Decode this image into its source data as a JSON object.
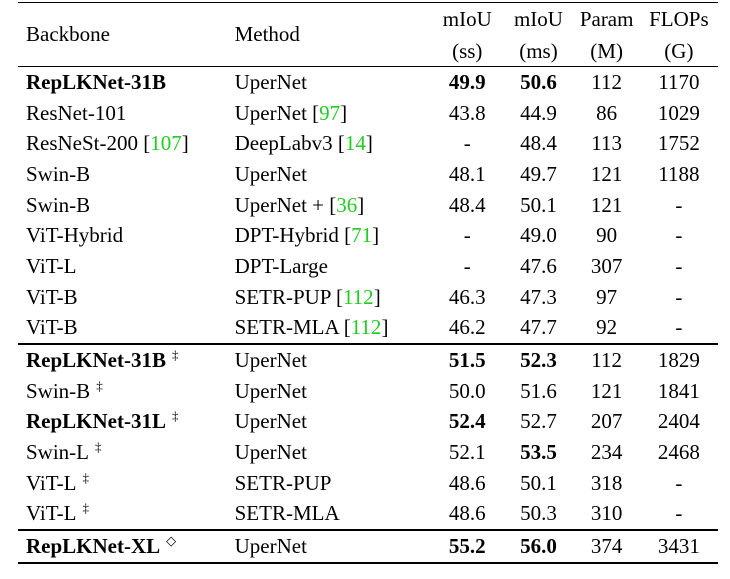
{
  "header": {
    "backbone": "Backbone",
    "method": "Method",
    "miou_ss_top": "mIoU",
    "miou_ss_bottom": "(ss)",
    "miou_ms_top": "mIoU",
    "miou_ms_bottom": "(ms)",
    "param_top": "Param",
    "param_bottom": "(M)",
    "flops_top": "FLOPs",
    "flops_bottom": "(G)"
  },
  "rows": [
    {
      "backbone": "RepLKNet-31B",
      "backbone_bold": true,
      "mark": "",
      "method": "UperNet",
      "cite": "",
      "ss": "49.9",
      "ss_bold": true,
      "ms": "50.6",
      "ms_bold": true,
      "param": "112",
      "flops": "1170"
    },
    {
      "backbone": "ResNet-101",
      "backbone_bold": false,
      "mark": "",
      "method": "UperNet",
      "cite": "97",
      "ss": "43.8",
      "ss_bold": false,
      "ms": "44.9",
      "ms_bold": false,
      "param": "86",
      "flops": "1029"
    },
    {
      "backbone": "ResNeSt-200",
      "backbone_cite": "107",
      "backbone_bold": false,
      "mark": "",
      "method": "DeepLabv3",
      "cite": "14",
      "ss": "-",
      "ss_bold": false,
      "ms": "48.4",
      "ms_bold": false,
      "param": "113",
      "flops": "1752"
    },
    {
      "backbone": "Swin-B",
      "backbone_bold": false,
      "mark": "",
      "method": "UperNet",
      "cite": "",
      "ss": "48.1",
      "ss_bold": false,
      "ms": "49.7",
      "ms_bold": false,
      "param": "121",
      "flops": "1188"
    },
    {
      "backbone": "Swin-B",
      "backbone_bold": false,
      "mark": "",
      "method": "UperNet +",
      "cite": "36",
      "ss": "48.4",
      "ss_bold": false,
      "ms": "50.1",
      "ms_bold": false,
      "param": "121",
      "flops": "-"
    },
    {
      "backbone": "ViT-Hybrid",
      "backbone_bold": false,
      "mark": "",
      "method": "DPT-Hybrid",
      "cite": "71",
      "ss": "-",
      "ss_bold": false,
      "ms": "49.0",
      "ms_bold": false,
      "param": "90",
      "flops": "-"
    },
    {
      "backbone": "ViT-L",
      "backbone_bold": false,
      "mark": "",
      "method": "DPT-Large",
      "cite": "",
      "ss": "-",
      "ss_bold": false,
      "ms": "47.6",
      "ms_bold": false,
      "param": "307",
      "flops": "-"
    },
    {
      "backbone": "ViT-B",
      "backbone_bold": false,
      "mark": "",
      "method": "SETR-PUP",
      "cite": "112",
      "ss": "46.3",
      "ss_bold": false,
      "ms": "47.3",
      "ms_bold": false,
      "param": "97",
      "flops": "-"
    },
    {
      "backbone": "ViT-B",
      "backbone_bold": false,
      "mark": "",
      "method": "SETR-MLA",
      "cite": "112",
      "ss": "46.2",
      "ss_bold": false,
      "ms": "47.7",
      "ms_bold": false,
      "param": "92",
      "flops": "-"
    },
    {
      "backbone": "RepLKNet-31B",
      "backbone_bold": true,
      "mark": "‡",
      "method": "UperNet",
      "cite": "",
      "ss": "51.5",
      "ss_bold": true,
      "ms": "52.3",
      "ms_bold": true,
      "param": "112",
      "flops": "1829",
      "group_start": true
    },
    {
      "backbone": "Swin-B",
      "backbone_bold": false,
      "mark": "‡",
      "method": "UperNet",
      "cite": "",
      "ss": "50.0",
      "ss_bold": false,
      "ms": "51.6",
      "ms_bold": false,
      "param": "121",
      "flops": "1841"
    },
    {
      "backbone": "RepLKNet-31L",
      "backbone_bold": true,
      "mark": "‡",
      "method": "UperNet",
      "cite": "",
      "ss": "52.4",
      "ss_bold": true,
      "ms": "52.7",
      "ms_bold": false,
      "param": "207",
      "flops": "2404"
    },
    {
      "backbone": "Swin-L",
      "backbone_bold": false,
      "mark": "‡",
      "method": "UperNet",
      "cite": "",
      "ss": "52.1",
      "ss_bold": false,
      "ms": "53.5",
      "ms_bold": true,
      "param": "234",
      "flops": "2468"
    },
    {
      "backbone": "ViT-L",
      "backbone_bold": false,
      "mark": "‡",
      "method": "SETR-PUP",
      "cite": "",
      "ss": "48.6",
      "ss_bold": false,
      "ms": "50.1",
      "ms_bold": false,
      "param": "318",
      "flops": "-"
    },
    {
      "backbone": "ViT-L",
      "backbone_bold": false,
      "mark": "‡",
      "method": "SETR-MLA",
      "cite": "",
      "ss": "48.6",
      "ss_bold": false,
      "ms": "50.3",
      "ms_bold": false,
      "param": "310",
      "flops": "-"
    },
    {
      "backbone": "RepLKNet-XL",
      "backbone_bold": true,
      "mark": "◇",
      "method": "UperNet",
      "cite": "",
      "ss": "55.2",
      "ss_bold": true,
      "ms": "56.0",
      "ms_bold": true,
      "param": "374",
      "flops": "3431",
      "group_start": true
    }
  ],
  "colors": {
    "citation": "#22cc22",
    "text": "#000000"
  }
}
